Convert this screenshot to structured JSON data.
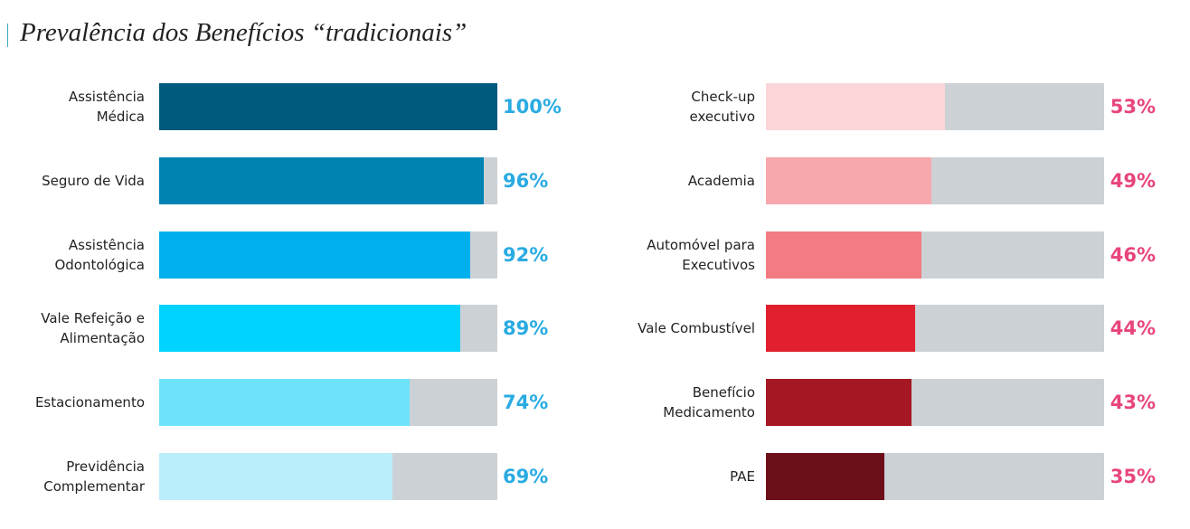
{
  "title": "Prevalência dos Benefícios “tradicionais”",
  "chart_data": [
    {
      "type": "bar",
      "orientation": "horizontal",
      "categories": [
        "Assistência\nMédica",
        "Seguro de Vida",
        "Assistência\nOdontológica",
        "Vale Refeição e\nAlimentação",
        "Estacionamento",
        "Previdência\nComplementar"
      ],
      "values": [
        100,
        96,
        92,
        89,
        74,
        69
      ],
      "value_labels": [
        "100%",
        "96%",
        "92%",
        "89%",
        "74%",
        "69%"
      ],
      "colors": [
        "#005a7d",
        "#0083b3",
        "#00b0ec",
        "#00d3ff",
        "#6de3fb",
        "#bbeefb"
      ],
      "label_color": "#29abe2",
      "track_color": "#ccd1d5",
      "xlim": [
        0,
        100
      ]
    },
    {
      "type": "bar",
      "orientation": "horizontal",
      "categories": [
        "Check-up\nexecutivo",
        "Academia",
        "Automóvel para\nExecutivos",
        "Vale Combustível",
        "Benefício\nMedicamento",
        "PAE"
      ],
      "values": [
        53,
        49,
        46,
        44,
        43,
        35
      ],
      "value_labels": [
        "53%",
        "49%",
        "46%",
        "44%",
        "43%",
        "35%"
      ],
      "colors": [
        "#fbd5d7",
        "#f7a8ac",
        "#f27c81",
        "#e11f2e",
        "#a51722",
        "#6c0f18"
      ],
      "label_color": "#e8457c",
      "track_color": "#ccd1d5",
      "xlim": [
        0,
        100
      ]
    }
  ]
}
